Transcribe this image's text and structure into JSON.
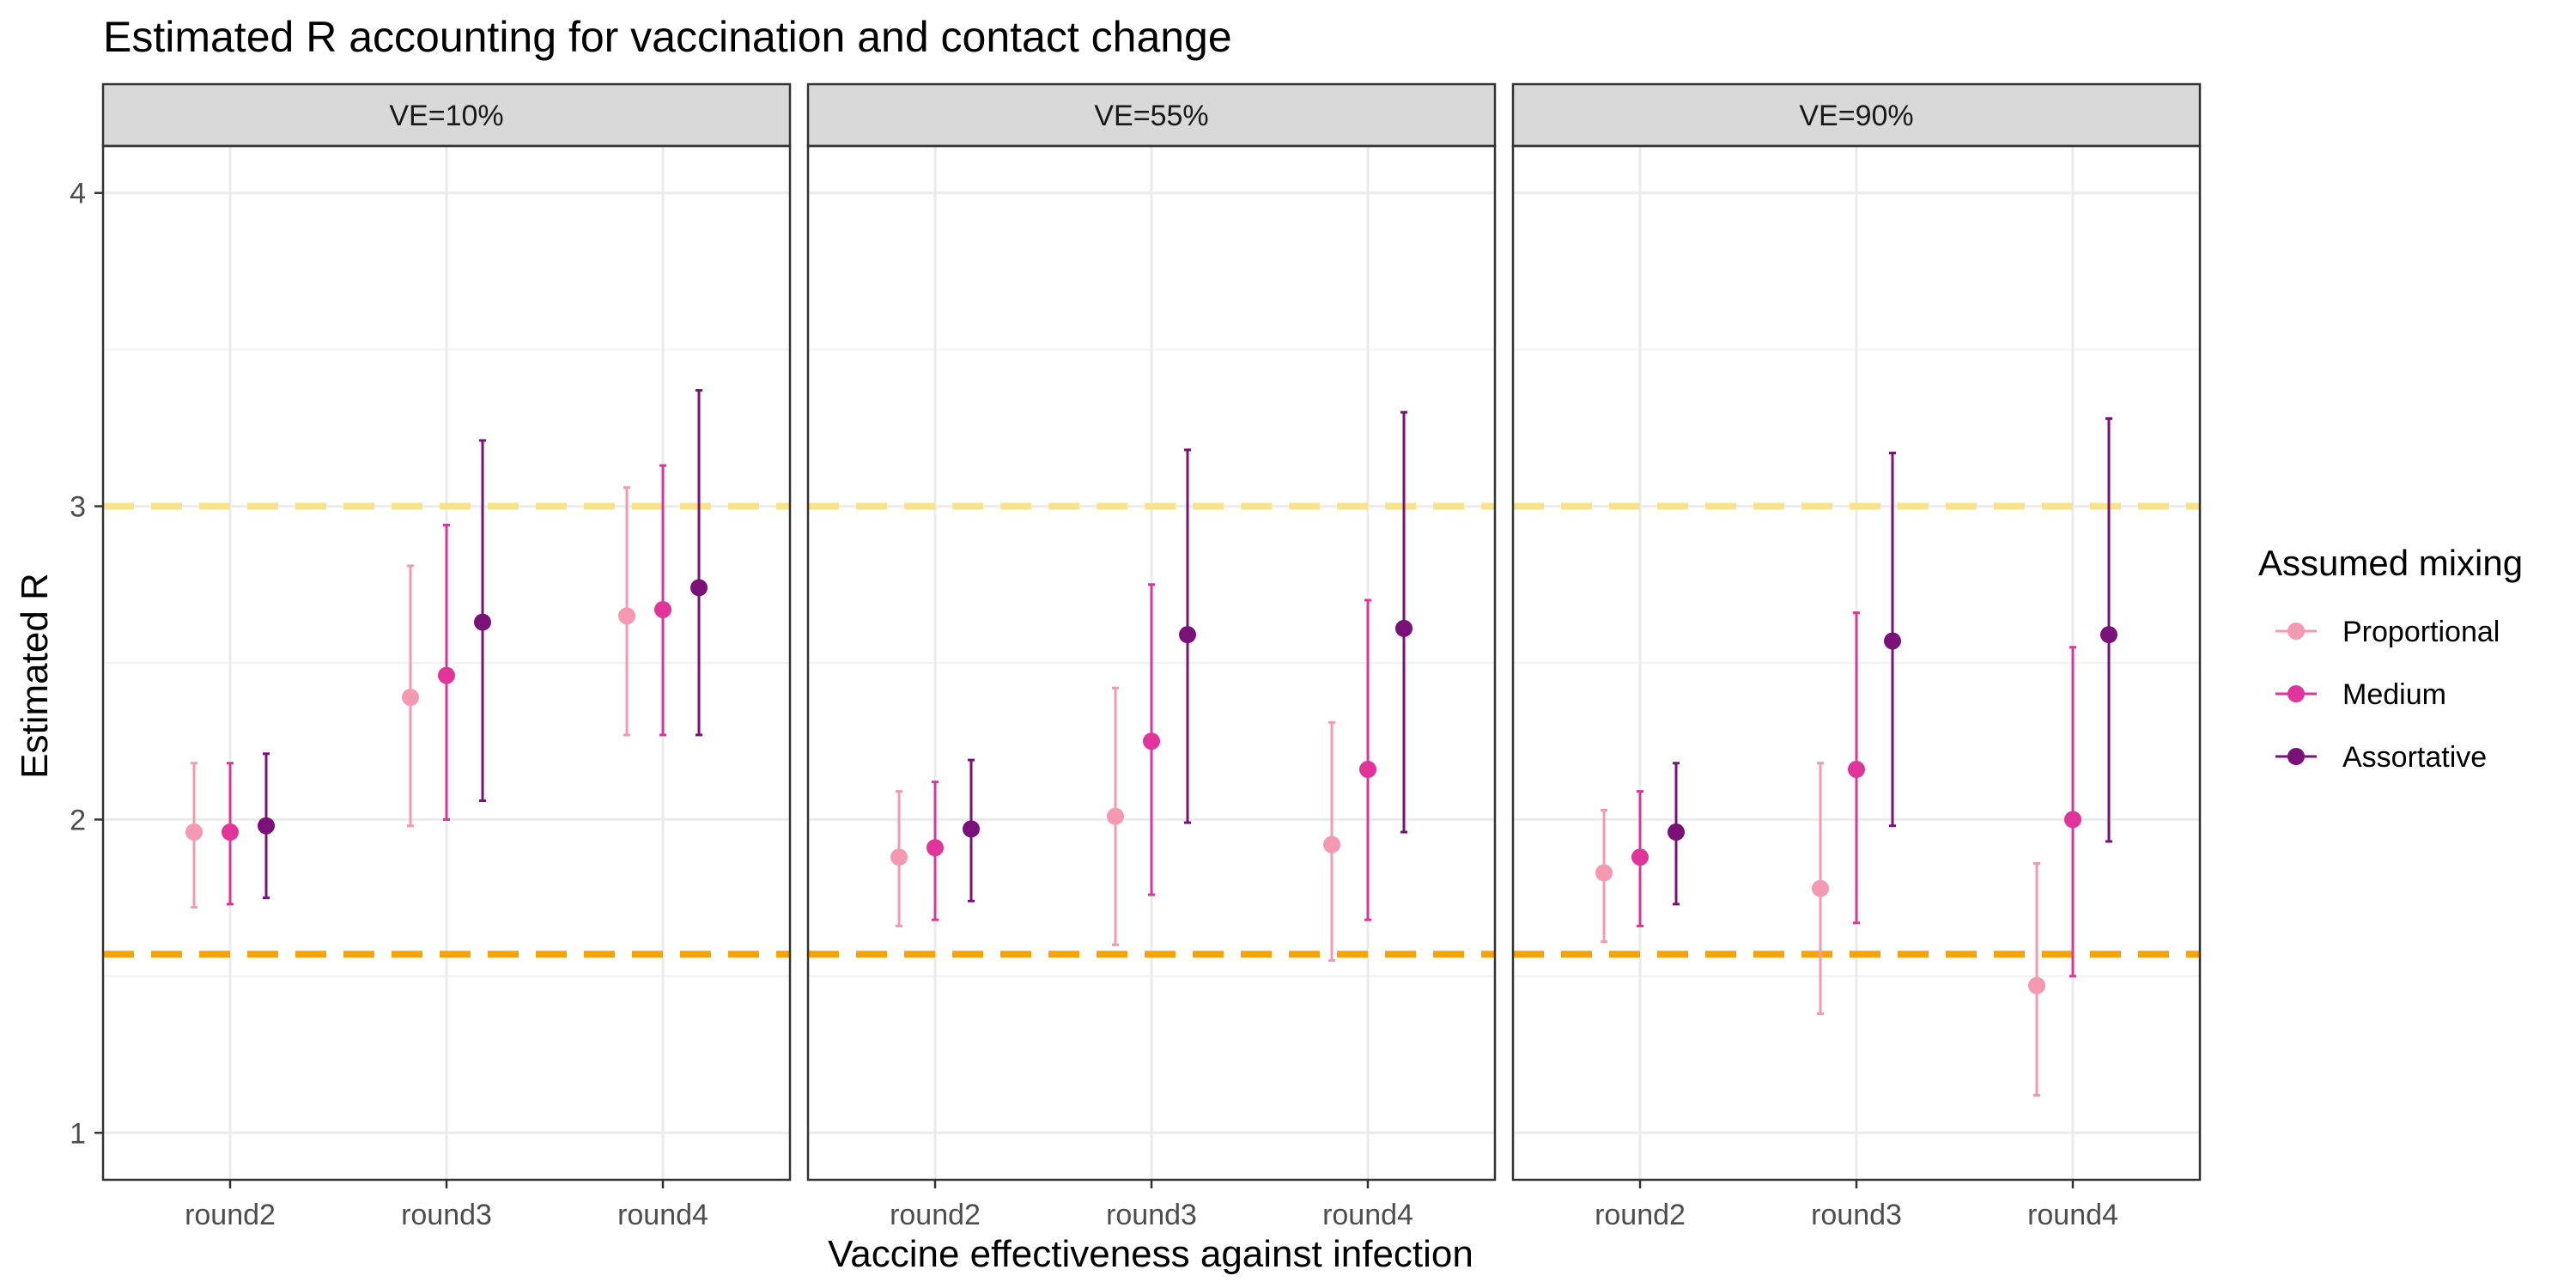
{
  "chart_data": {
    "type": "scatter",
    "title": "Estimated R accounting for vaccination and contact change",
    "xlabel": "Vaccine effectiveness against infection",
    "ylabel": "Estimated R",
    "ylim": [
      0.85,
      4.15
    ],
    "yticks": [
      1,
      2,
      3,
      4
    ],
    "categories": [
      "round2",
      "round3",
      "round4"
    ],
    "facets": [
      "VE=10%",
      "VE=55%",
      "VE=90%"
    ],
    "reference_lines": [
      {
        "y": 3.0,
        "style": "dashed",
        "color": "#F5E48C"
      },
      {
        "y": 1.57,
        "style": "dashed",
        "color": "#F5A30A"
      }
    ],
    "grid": true,
    "legend": {
      "title": "Assumed mixing",
      "position": "right",
      "entries": [
        "Proportional",
        "Medium",
        "Assortative"
      ]
    },
    "series": [
      {
        "name": "Proportional",
        "color": "#F599B3",
        "panels": [
          {
            "values": [
              1.96,
              2.39,
              2.65
            ],
            "lower": [
              1.72,
              1.98,
              2.27
            ],
            "upper": [
              2.18,
              2.81,
              3.06
            ]
          },
          {
            "values": [
              1.88,
              2.01,
              1.92
            ],
            "lower": [
              1.66,
              1.6,
              1.55
            ],
            "upper": [
              2.09,
              2.42,
              2.31
            ]
          },
          {
            "values": [
              1.83,
              1.78,
              1.47
            ],
            "lower": [
              1.61,
              1.38,
              1.12
            ],
            "upper": [
              2.03,
              2.18,
              1.86
            ]
          }
        ]
      },
      {
        "name": "Medium",
        "color": "#E0349A",
        "panels": [
          {
            "values": [
              1.96,
              2.46,
              2.67
            ],
            "lower": [
              1.73,
              2.0,
              2.27
            ],
            "upper": [
              2.18,
              2.94,
              3.13
            ]
          },
          {
            "values": [
              1.91,
              2.25,
              2.16
            ],
            "lower": [
              1.68,
              1.76,
              1.68
            ],
            "upper": [
              2.12,
              2.75,
              2.7
            ]
          },
          {
            "values": [
              1.88,
              2.16,
              2.0
            ],
            "lower": [
              1.66,
              1.67,
              1.5
            ],
            "upper": [
              2.09,
              2.66,
              2.55
            ]
          }
        ]
      },
      {
        "name": "Assortative",
        "color": "#7A1178",
        "panels": [
          {
            "values": [
              1.98,
              2.63,
              2.74
            ],
            "lower": [
              1.75,
              2.06,
              2.27
            ],
            "upper": [
              2.21,
              3.21,
              3.37
            ]
          },
          {
            "values": [
              1.97,
              2.59,
              2.61
            ],
            "lower": [
              1.74,
              1.99,
              1.96
            ],
            "upper": [
              2.19,
              3.18,
              3.3
            ]
          },
          {
            "values": [
              1.96,
              2.57,
              2.59
            ],
            "lower": [
              1.73,
              1.98,
              1.93
            ],
            "upper": [
              2.18,
              3.17,
              3.28
            ]
          }
        ]
      }
    ]
  }
}
